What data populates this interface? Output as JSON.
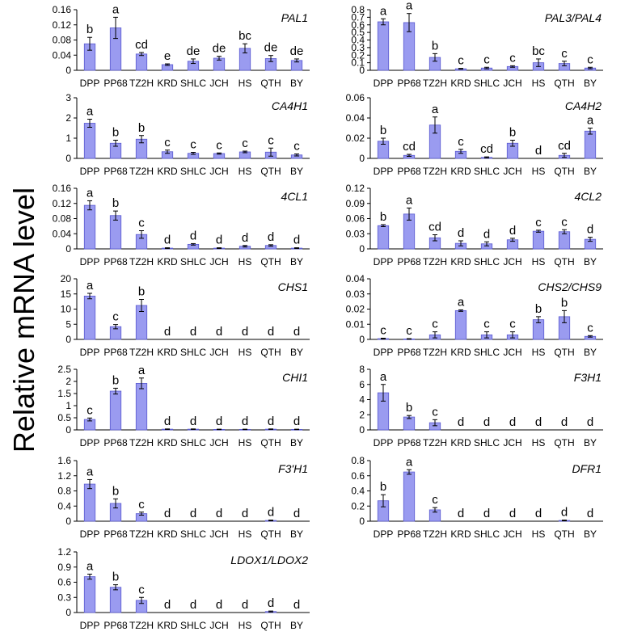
{
  "figure": {
    "ylabel": "Relative mRNA level",
    "bar_color": "#9a9bf0",
    "bar_edge_color": "#5a5ad0",
    "categories": [
      "DPP",
      "PP68",
      "TZ2H",
      "KRD",
      "SHLC",
      "JCH",
      "HS",
      "QTH",
      "BY"
    ]
  },
  "chart_data": [
    {
      "type": "bar",
      "title": "PAL1",
      "ylim": [
        0,
        0.16
      ],
      "ticks": [
        "0",
        "0.04",
        "0.08",
        "0.12",
        "0.16"
      ],
      "tick_values": [
        0,
        0.04,
        0.08,
        0.12,
        0.16
      ],
      "values": [
        0.07,
        0.112,
        0.043,
        0.015,
        0.024,
        0.032,
        0.058,
        0.031,
        0.026
      ],
      "errors": [
        0.017,
        0.028,
        0.004,
        0.002,
        0.006,
        0.005,
        0.012,
        0.008,
        0.004
      ],
      "letters": [
        "b",
        "a",
        "cd",
        "e",
        "de",
        "de",
        "bc",
        "de",
        "de"
      ]
    },
    {
      "type": "bar",
      "title": "PAL3/PAL4",
      "ylim": [
        0,
        0.8
      ],
      "ticks": [
        "0",
        "0.1",
        "0.2",
        "0.3",
        "0.4",
        "0.5",
        "0.6",
        "0.7",
        "0.8"
      ],
      "tick_values": [
        0,
        0.1,
        0.2,
        0.3,
        0.4,
        0.5,
        0.6,
        0.7,
        0.8
      ],
      "values": [
        0.64,
        0.63,
        0.17,
        0.02,
        0.03,
        0.05,
        0.1,
        0.09,
        0.03
      ],
      "errors": [
        0.04,
        0.12,
        0.05,
        0.005,
        0.01,
        0.01,
        0.05,
        0.03,
        0.01
      ],
      "letters": [
        "a",
        "a",
        "b",
        "c",
        "c",
        "c",
        "bc",
        "c",
        "c"
      ]
    },
    {
      "type": "bar",
      "title": "CA4H1",
      "ylim": [
        0,
        3
      ],
      "ticks": [
        "0",
        "1",
        "2",
        "3"
      ],
      "tick_values": [
        0,
        1,
        2,
        3
      ],
      "values": [
        1.74,
        0.75,
        0.95,
        0.33,
        0.25,
        0.24,
        0.32,
        0.31,
        0.17
      ],
      "errors": [
        0.2,
        0.15,
        0.18,
        0.08,
        0.05,
        0.03,
        0.04,
        0.2,
        0.05
      ],
      "letters": [
        "a",
        "b",
        "b",
        "c",
        "c",
        "c",
        "c",
        "c",
        "c"
      ]
    },
    {
      "type": "bar",
      "title": "CA4H2",
      "ylim": [
        0,
        0.06
      ],
      "ticks": [
        "0",
        "0.02",
        "0.04",
        "0.06"
      ],
      "tick_values": [
        0,
        0.02,
        0.04,
        0.06
      ],
      "values": [
        0.017,
        0.003,
        0.033,
        0.007,
        0.001,
        0.015,
        0,
        0.003,
        0.027
      ],
      "errors": [
        0.003,
        0.001,
        0.008,
        0.002,
        0.0005,
        0.003,
        0,
        0.002,
        0.003
      ],
      "letters": [
        "b",
        "cd",
        "a",
        "c",
        "cd",
        "b",
        "d",
        "cd",
        "a"
      ]
    },
    {
      "type": "bar",
      "title": "4CL1",
      "ylim": [
        0,
        0.16
      ],
      "ticks": [
        "0",
        "0.04",
        "0.08",
        "0.12",
        "0.16"
      ],
      "tick_values": [
        0,
        0.04,
        0.08,
        0.12,
        0.16
      ],
      "values": [
        0.115,
        0.088,
        0.038,
        0.002,
        0.012,
        0.002,
        0.007,
        0.009,
        0.002
      ],
      "errors": [
        0.012,
        0.012,
        0.01,
        0.001,
        0.002,
        0.001,
        0.002,
        0.002,
        0.001
      ],
      "letters": [
        "a",
        "b",
        "c",
        "d",
        "d",
        "d",
        "d",
        "d",
        "d"
      ]
    },
    {
      "type": "bar",
      "title": "4CL2",
      "ylim": [
        0,
        0.12
      ],
      "ticks": [
        "0",
        "0.03",
        "0.06",
        "0.09",
        "0.12"
      ],
      "tick_values": [
        0,
        0.03,
        0.06,
        0.09,
        0.12
      ],
      "values": [
        0.046,
        0.069,
        0.022,
        0.011,
        0.01,
        0.018,
        0.035,
        0.034,
        0.019
      ],
      "errors": [
        0.002,
        0.012,
        0.006,
        0.005,
        0.004,
        0.003,
        0.002,
        0.004,
        0.004
      ],
      "letters": [
        "b",
        "a",
        "cd",
        "d",
        "d",
        "d",
        "c",
        "c",
        "d"
      ]
    },
    {
      "type": "bar",
      "title": "CHS1",
      "ylim": [
        0,
        20
      ],
      "ticks": [
        "0",
        "5",
        "10",
        "15",
        "20"
      ],
      "tick_values": [
        0,
        5,
        10,
        15,
        20
      ],
      "values": [
        14.3,
        4.2,
        11.2,
        0,
        0,
        0,
        0,
        0,
        0
      ],
      "errors": [
        0.9,
        0.7,
        2.0,
        0,
        0,
        0,
        0,
        0,
        0
      ],
      "letters": [
        "a",
        "c",
        "b",
        "d",
        "d",
        "d",
        "d",
        "d",
        "d"
      ]
    },
    {
      "type": "bar",
      "title": "CHS2/CHS9",
      "ylim": [
        0,
        0.04
      ],
      "ticks": [
        "0",
        "0.01",
        "0.02",
        "0.03",
        "0.04"
      ],
      "tick_values": [
        0,
        0.01,
        0.02,
        0.03,
        0.04
      ],
      "values": [
        0.0005,
        0.0003,
        0.003,
        0.019,
        0.003,
        0.003,
        0.013,
        0.015,
        0.002
      ],
      "errors": [
        0.0003,
        0.0002,
        0.002,
        0.0005,
        0.002,
        0.002,
        0.002,
        0.004,
        0.0005
      ],
      "letters": [
        "c",
        "c",
        "c",
        "a",
        "c",
        "c",
        "b",
        "b",
        "c"
      ]
    },
    {
      "type": "bar",
      "title": "CHI1",
      "ylim": [
        0,
        2.5
      ],
      "ticks": [
        "0",
        "0.5",
        "1",
        "1.5",
        "2",
        "2.5"
      ],
      "tick_values": [
        0,
        0.5,
        1,
        1.5,
        2,
        2.5
      ],
      "values": [
        0.43,
        1.6,
        1.92,
        0.03,
        0.03,
        0.02,
        0.02,
        0.03,
        0.02
      ],
      "errors": [
        0.06,
        0.12,
        0.22,
        0.01,
        0.01,
        0.01,
        0.01,
        0.01,
        0.01
      ],
      "letters": [
        "c",
        "b",
        "a",
        "d",
        "d",
        "d",
        "d",
        "d",
        "d"
      ]
    },
    {
      "type": "bar",
      "title": "F3H1",
      "ylim": [
        0,
        8
      ],
      "ticks": [
        "0",
        "2",
        "4",
        "6",
        "8"
      ],
      "tick_values": [
        0,
        2,
        4,
        6,
        8
      ],
      "values": [
        4.9,
        1.7,
        0.95,
        0,
        0,
        0,
        0,
        0,
        0
      ],
      "errors": [
        1.1,
        0.2,
        0.4,
        0,
        0,
        0,
        0,
        0,
        0
      ],
      "letters": [
        "a",
        "b",
        "c",
        "d",
        "d",
        "d",
        "d",
        "d",
        "d"
      ]
    },
    {
      "type": "bar",
      "title": "F3'H1",
      "ylim": [
        0,
        1.6
      ],
      "ticks": [
        "0",
        "0.4",
        "0.8",
        "1.2",
        "1.6"
      ],
      "tick_values": [
        0,
        0.4,
        0.8,
        1.2,
        1.6
      ],
      "values": [
        0.98,
        0.47,
        0.2,
        0,
        0,
        0,
        0,
        0.02,
        0
      ],
      "errors": [
        0.12,
        0.12,
        0.04,
        0,
        0,
        0,
        0,
        0.01,
        0
      ],
      "letters": [
        "a",
        "b",
        "c",
        "d",
        "d",
        "d",
        "d",
        "d",
        "d"
      ]
    },
    {
      "type": "bar",
      "title": "DFR1",
      "ylim": [
        0,
        0.8
      ],
      "ticks": [
        "0",
        "0.2",
        "0.4",
        "0.6",
        "0.8"
      ],
      "tick_values": [
        0,
        0.2,
        0.4,
        0.6,
        0.8
      ],
      "values": [
        0.27,
        0.65,
        0.15,
        0,
        0,
        0,
        0,
        0.01,
        0
      ],
      "errors": [
        0.08,
        0.03,
        0.03,
        0,
        0,
        0,
        0,
        0.005,
        0
      ],
      "letters": [
        "b",
        "a",
        "c",
        "d",
        "d",
        "d",
        "d",
        "d",
        "d"
      ]
    },
    {
      "type": "bar",
      "title": "LDOX1/LDOX2",
      "ylim": [
        0,
        1.2
      ],
      "ticks": [
        "0",
        "0.3",
        "0.6",
        "0.9",
        "1.2"
      ],
      "tick_values": [
        0,
        0.3,
        0.6,
        0.9,
        1.2
      ],
      "values": [
        0.71,
        0.5,
        0.24,
        0,
        0,
        0,
        0,
        0.02,
        0
      ],
      "errors": [
        0.05,
        0.05,
        0.06,
        0,
        0,
        0,
        0,
        0.01,
        0
      ],
      "letters": [
        "a",
        "b",
        "c",
        "d",
        "d",
        "d",
        "d",
        "d",
        "d"
      ]
    }
  ]
}
